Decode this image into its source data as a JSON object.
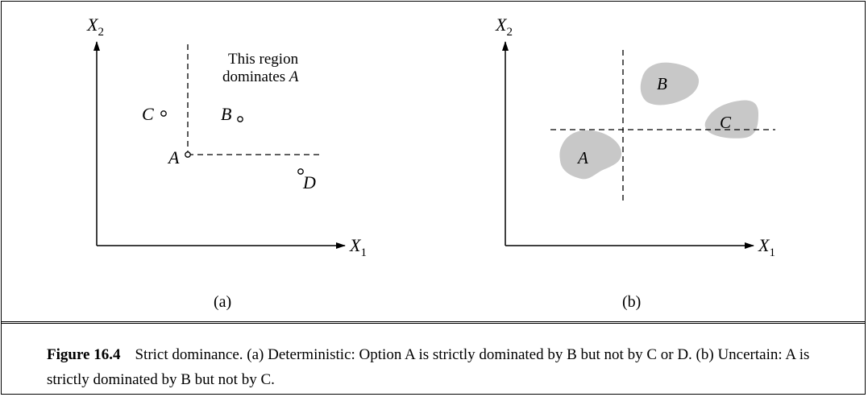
{
  "panel_a": {
    "axis_x": "X",
    "axis_x_sub": "1",
    "axis_y": "X",
    "axis_y_sub": "2",
    "region_label_line1": "This region",
    "region_label_line2": "dominates ",
    "region_label_letter": "A",
    "points": {
      "A": "A",
      "B": "B",
      "C": "C",
      "D": "D"
    },
    "panel_label": "(a)"
  },
  "panel_b": {
    "axis_x": "X",
    "axis_x_sub": "1",
    "axis_y": "X",
    "axis_y_sub": "2",
    "blobs": {
      "A": "A",
      "B": "B",
      "C": "C"
    },
    "blob_color": "#c8c8c8",
    "panel_label": "(b)"
  },
  "caption": {
    "label": "Figure 16.4",
    "text": "Strict dominance. (a) Deterministic: Option A is strictly dominated by B but not by C or D. (b) Uncertain: A is strictly dominated by B but not by C."
  }
}
